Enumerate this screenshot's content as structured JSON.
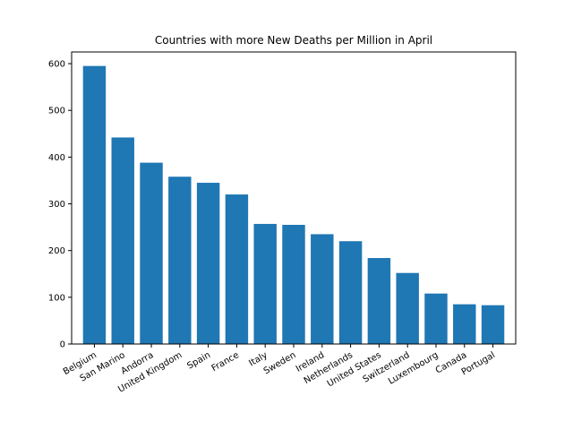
{
  "chart_data": {
    "type": "bar",
    "title": "Countries with more New Deaths per Million in April",
    "xlabel": "",
    "ylabel": "",
    "categories": [
      "Belgium",
      "San Marino",
      "Andorra",
      "United Kingdom",
      "Spain",
      "France",
      "Italy",
      "Sweden",
      "Ireland",
      "Netherlands",
      "United States",
      "Switzerland",
      "Luxembourg",
      "Canada",
      "Portugal"
    ],
    "values": [
      595,
      442,
      388,
      358,
      345,
      320,
      257,
      255,
      235,
      220,
      184,
      152,
      108,
      85,
      83
    ],
    "ylim": [
      0,
      625
    ],
    "yticks": [
      0,
      100,
      200,
      300,
      400,
      500,
      600
    ],
    "grid": false,
    "bar_color": "#1f77b4"
  }
}
